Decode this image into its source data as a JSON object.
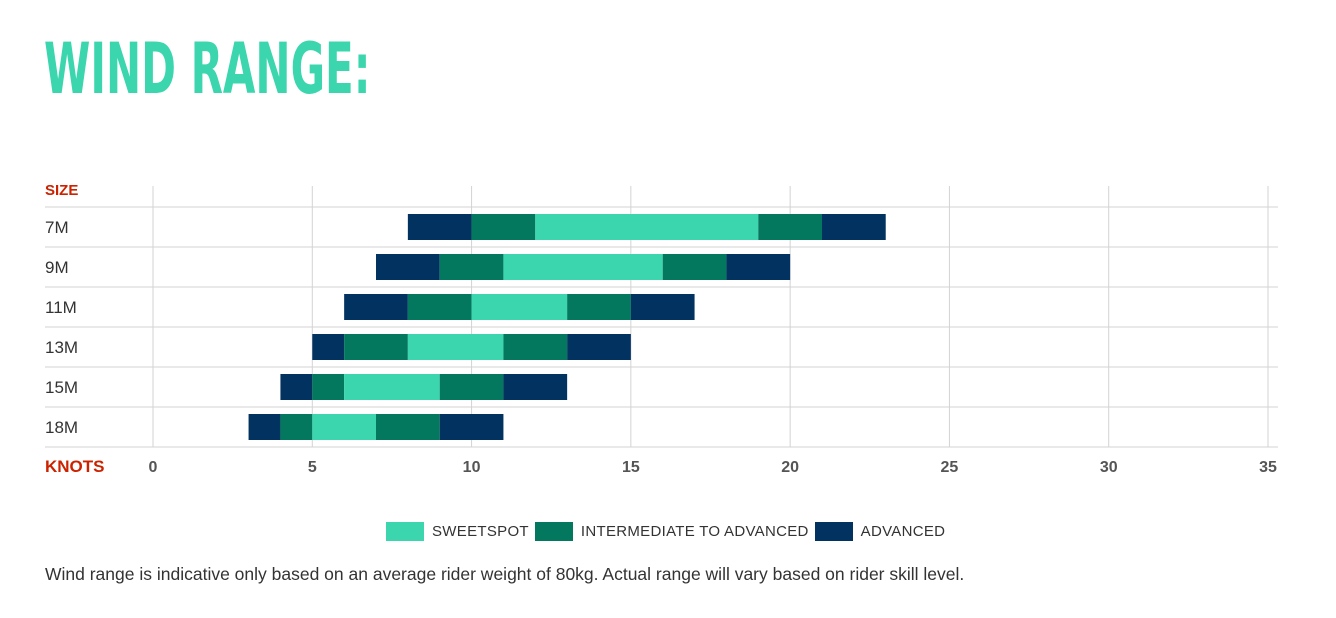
{
  "title": "WIND RANGE:",
  "note": "Wind range is indicative only based on an average rider weight of 80kg. Actual range will vary based on rider skill level.",
  "colors": {
    "title": "#3bd6ad",
    "sweetspot": "#3bd6ad",
    "intermediate": "#03785f",
    "advanced": "#02325f",
    "axis_label": "#cc2200",
    "grid": "#d3d3d3"
  },
  "legend": [
    {
      "key": "sweetspot",
      "label": "SWEETSPOT"
    },
    {
      "key": "intermediate",
      "label": "INTERMEDIATE TO ADVANCED"
    },
    {
      "key": "advanced",
      "label": "ADVANCED"
    }
  ],
  "chart_data": {
    "type": "bar",
    "orientation": "horizontal-stacked-range",
    "ylabel": "SIZE",
    "xlabel": "KNOTS",
    "xlim": [
      0,
      35
    ],
    "xticks": [
      "0",
      "5",
      "10",
      "15",
      "20",
      "25",
      "30",
      "35"
    ],
    "grid": true,
    "categories": [
      "7M",
      "9M",
      "11M",
      "13M",
      "15M",
      "18M"
    ],
    "rows": [
      {
        "size": "7M",
        "segments": [
          {
            "type": "advanced",
            "from": 8,
            "to": 10
          },
          {
            "type": "intermediate",
            "from": 10,
            "to": 12
          },
          {
            "type": "sweetspot",
            "from": 12,
            "to": 19
          },
          {
            "type": "intermediate",
            "from": 19,
            "to": 21
          },
          {
            "type": "advanced",
            "from": 21,
            "to": 23
          }
        ]
      },
      {
        "size": "9M",
        "segments": [
          {
            "type": "advanced",
            "from": 7,
            "to": 9
          },
          {
            "type": "intermediate",
            "from": 9,
            "to": 11
          },
          {
            "type": "sweetspot",
            "from": 11,
            "to": 16
          },
          {
            "type": "intermediate",
            "from": 16,
            "to": 18
          },
          {
            "type": "advanced",
            "from": 18,
            "to": 20
          }
        ]
      },
      {
        "size": "11M",
        "segments": [
          {
            "type": "advanced",
            "from": 6,
            "to": 8
          },
          {
            "type": "intermediate",
            "from": 8,
            "to": 10
          },
          {
            "type": "sweetspot",
            "from": 10,
            "to": 13
          },
          {
            "type": "intermediate",
            "from": 13,
            "to": 15
          },
          {
            "type": "advanced",
            "from": 15,
            "to": 17
          }
        ]
      },
      {
        "size": "13M",
        "segments": [
          {
            "type": "advanced",
            "from": 5,
            "to": 6
          },
          {
            "type": "intermediate",
            "from": 6,
            "to": 8
          },
          {
            "type": "sweetspot",
            "from": 8,
            "to": 11
          },
          {
            "type": "intermediate",
            "from": 11,
            "to": 13
          },
          {
            "type": "advanced",
            "from": 13,
            "to": 15
          }
        ]
      },
      {
        "size": "15M",
        "segments": [
          {
            "type": "advanced",
            "from": 4,
            "to": 5
          },
          {
            "type": "intermediate",
            "from": 5,
            "to": 6
          },
          {
            "type": "sweetspot",
            "from": 6,
            "to": 9
          },
          {
            "type": "intermediate",
            "from": 9,
            "to": 11
          },
          {
            "type": "advanced",
            "from": 11,
            "to": 13
          }
        ]
      },
      {
        "size": "18M",
        "segments": [
          {
            "type": "advanced",
            "from": 3,
            "to": 4
          },
          {
            "type": "intermediate",
            "from": 4,
            "to": 5
          },
          {
            "type": "sweetspot",
            "from": 5,
            "to": 7
          },
          {
            "type": "intermediate",
            "from": 7,
            "to": 9
          },
          {
            "type": "advanced",
            "from": 9,
            "to": 11
          }
        ]
      }
    ]
  }
}
